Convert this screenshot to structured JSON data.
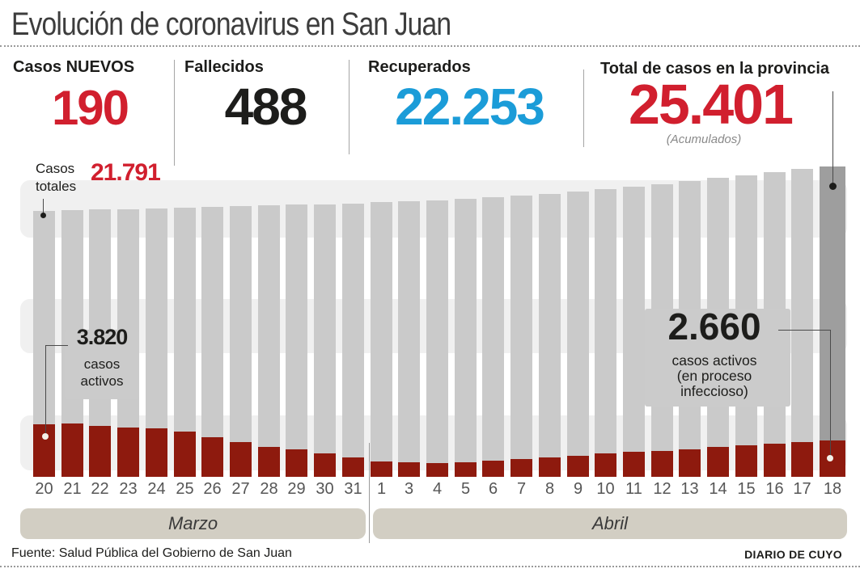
{
  "header": {
    "title": "Evolución de coronavirus en San Juan"
  },
  "stats": [
    {
      "label": "Casos NUEVOS",
      "value": "190",
      "color": "#d11f2e"
    },
    {
      "label": "Fallecidos",
      "value": "488",
      "color": "#1d1d1b"
    },
    {
      "label": "Recuperados",
      "value": "22.253",
      "color": "#1b9cd8"
    },
    {
      "label": "Total de casos en la provincia",
      "value": "25.401",
      "note": "(Acumulados)",
      "color": "#d11f2e"
    }
  ],
  "annotations": {
    "first_total": {
      "label_line1": "Casos",
      "label_line2": "totales",
      "value": "21.791"
    },
    "first_active": {
      "value": "3.820",
      "label_line1": "casos",
      "label_line2": "activos"
    },
    "last_active": {
      "value": "2.660",
      "label_line1": "casos activos",
      "label_line2": "(en proceso",
      "label_line3": "infeccioso)"
    }
  },
  "months": [
    {
      "label": "Marzo"
    },
    {
      "label": "Abril"
    }
  ],
  "footer": {
    "source": "Fuente: Salud Pública del Gobierno de San Juan",
    "credit": "DIARIO DE CUYO"
  },
  "colors": {
    "accent_red": "#d11f2e",
    "accent_blue": "#1b9cd8",
    "bar_total": "#cacaca",
    "bar_total_highlight": "#9e9e9e",
    "bar_active": "#8e1a0e",
    "background_band": "#f0f0f0",
    "annotation_panel": "#cbcbcb",
    "month_band": "#d2cec3"
  },
  "chart_data": {
    "type": "bar",
    "title": "Evolución de coronavirus en San Juan",
    "categories": [
      "20",
      "21",
      "22",
      "23",
      "24",
      "25",
      "26",
      "27",
      "28",
      "29",
      "30",
      "31",
      "1",
      "3",
      "4",
      "5",
      "6",
      "7",
      "8",
      "9",
      "10",
      "11",
      "12",
      "13",
      "14",
      "15",
      "16",
      "17",
      "18"
    ],
    "month_groups": [
      {
        "label": "Marzo",
        "days": 12
      },
      {
        "label": "Abril",
        "days": 17
      }
    ],
    "series": [
      {
        "name": "Casos totales (acumulados)",
        "color": "#cacaca",
        "values": [
          21791,
          21830,
          21870,
          21910,
          21950,
          22000,
          22070,
          22140,
          22200,
          22260,
          22320,
          22390,
          22470,
          22560,
          22650,
          22760,
          22880,
          23000,
          23170,
          23350,
          23550,
          23750,
          23950,
          24200,
          24450,
          24700,
          24950,
          25211,
          25401
        ]
      },
      {
        "name": "Casos activos (en proceso infeccioso)",
        "color": "#8e1a0e",
        "values": [
          3820,
          3900,
          3740,
          3600,
          3520,
          3300,
          2870,
          2520,
          2200,
          2030,
          1710,
          1430,
          1120,
          1060,
          1010,
          1080,
          1200,
          1280,
          1400,
          1510,
          1690,
          1830,
          1890,
          2030,
          2160,
          2280,
          2420,
          2560,
          2660
        ]
      }
    ],
    "highlighted_category": "18",
    "annotations": [
      {
        "series": "Casos totales (acumulados)",
        "category": "20",
        "value": 21791,
        "text": "Casos totales 21.791"
      },
      {
        "series": "Casos activos (en proceso infeccioso)",
        "category": "20",
        "value": 3820,
        "text": "3.820 casos activos"
      },
      {
        "series": "Casos activos (en proceso infeccioso)",
        "category": "18",
        "value": 2660,
        "text": "2.660 casos activos (en proceso infeccioso)"
      },
      {
        "series": "Casos totales (acumulados)",
        "category": "18",
        "value": 25401,
        "text": "Total de casos en la provincia 25.401 (Acumulados)"
      }
    ],
    "xlabel": "",
    "ylabel": "",
    "grid": "horizontal-bands",
    "legend": "none"
  }
}
